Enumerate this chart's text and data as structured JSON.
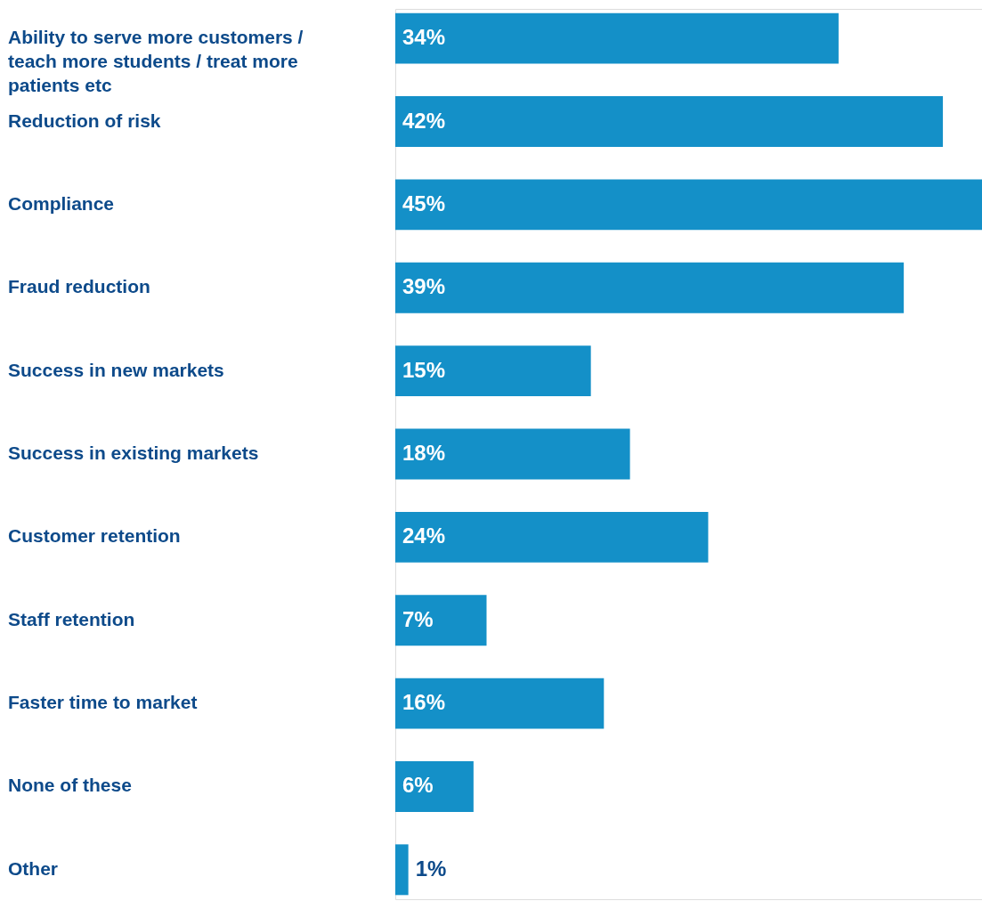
{
  "chart_data": {
    "type": "bar",
    "orientation": "horizontal",
    "categories": [
      "Ability to serve more customers / teach more students / treat more patients etc",
      "Reduction of risk",
      "Compliance",
      "Fraud reduction",
      "Success in new markets",
      "Success in existing markets",
      "Customer retention",
      "Staff retention",
      "Faster time to market",
      "None of these",
      "Other"
    ],
    "values": [
      34,
      42,
      45,
      39,
      15,
      18,
      24,
      7,
      16,
      6,
      1
    ],
    "value_labels": [
      "34%",
      "42%",
      "45%",
      "39%",
      "15%",
      "18%",
      "24%",
      "7%",
      "16%",
      "6%",
      "1%"
    ],
    "color": "#1490c8"
  }
}
